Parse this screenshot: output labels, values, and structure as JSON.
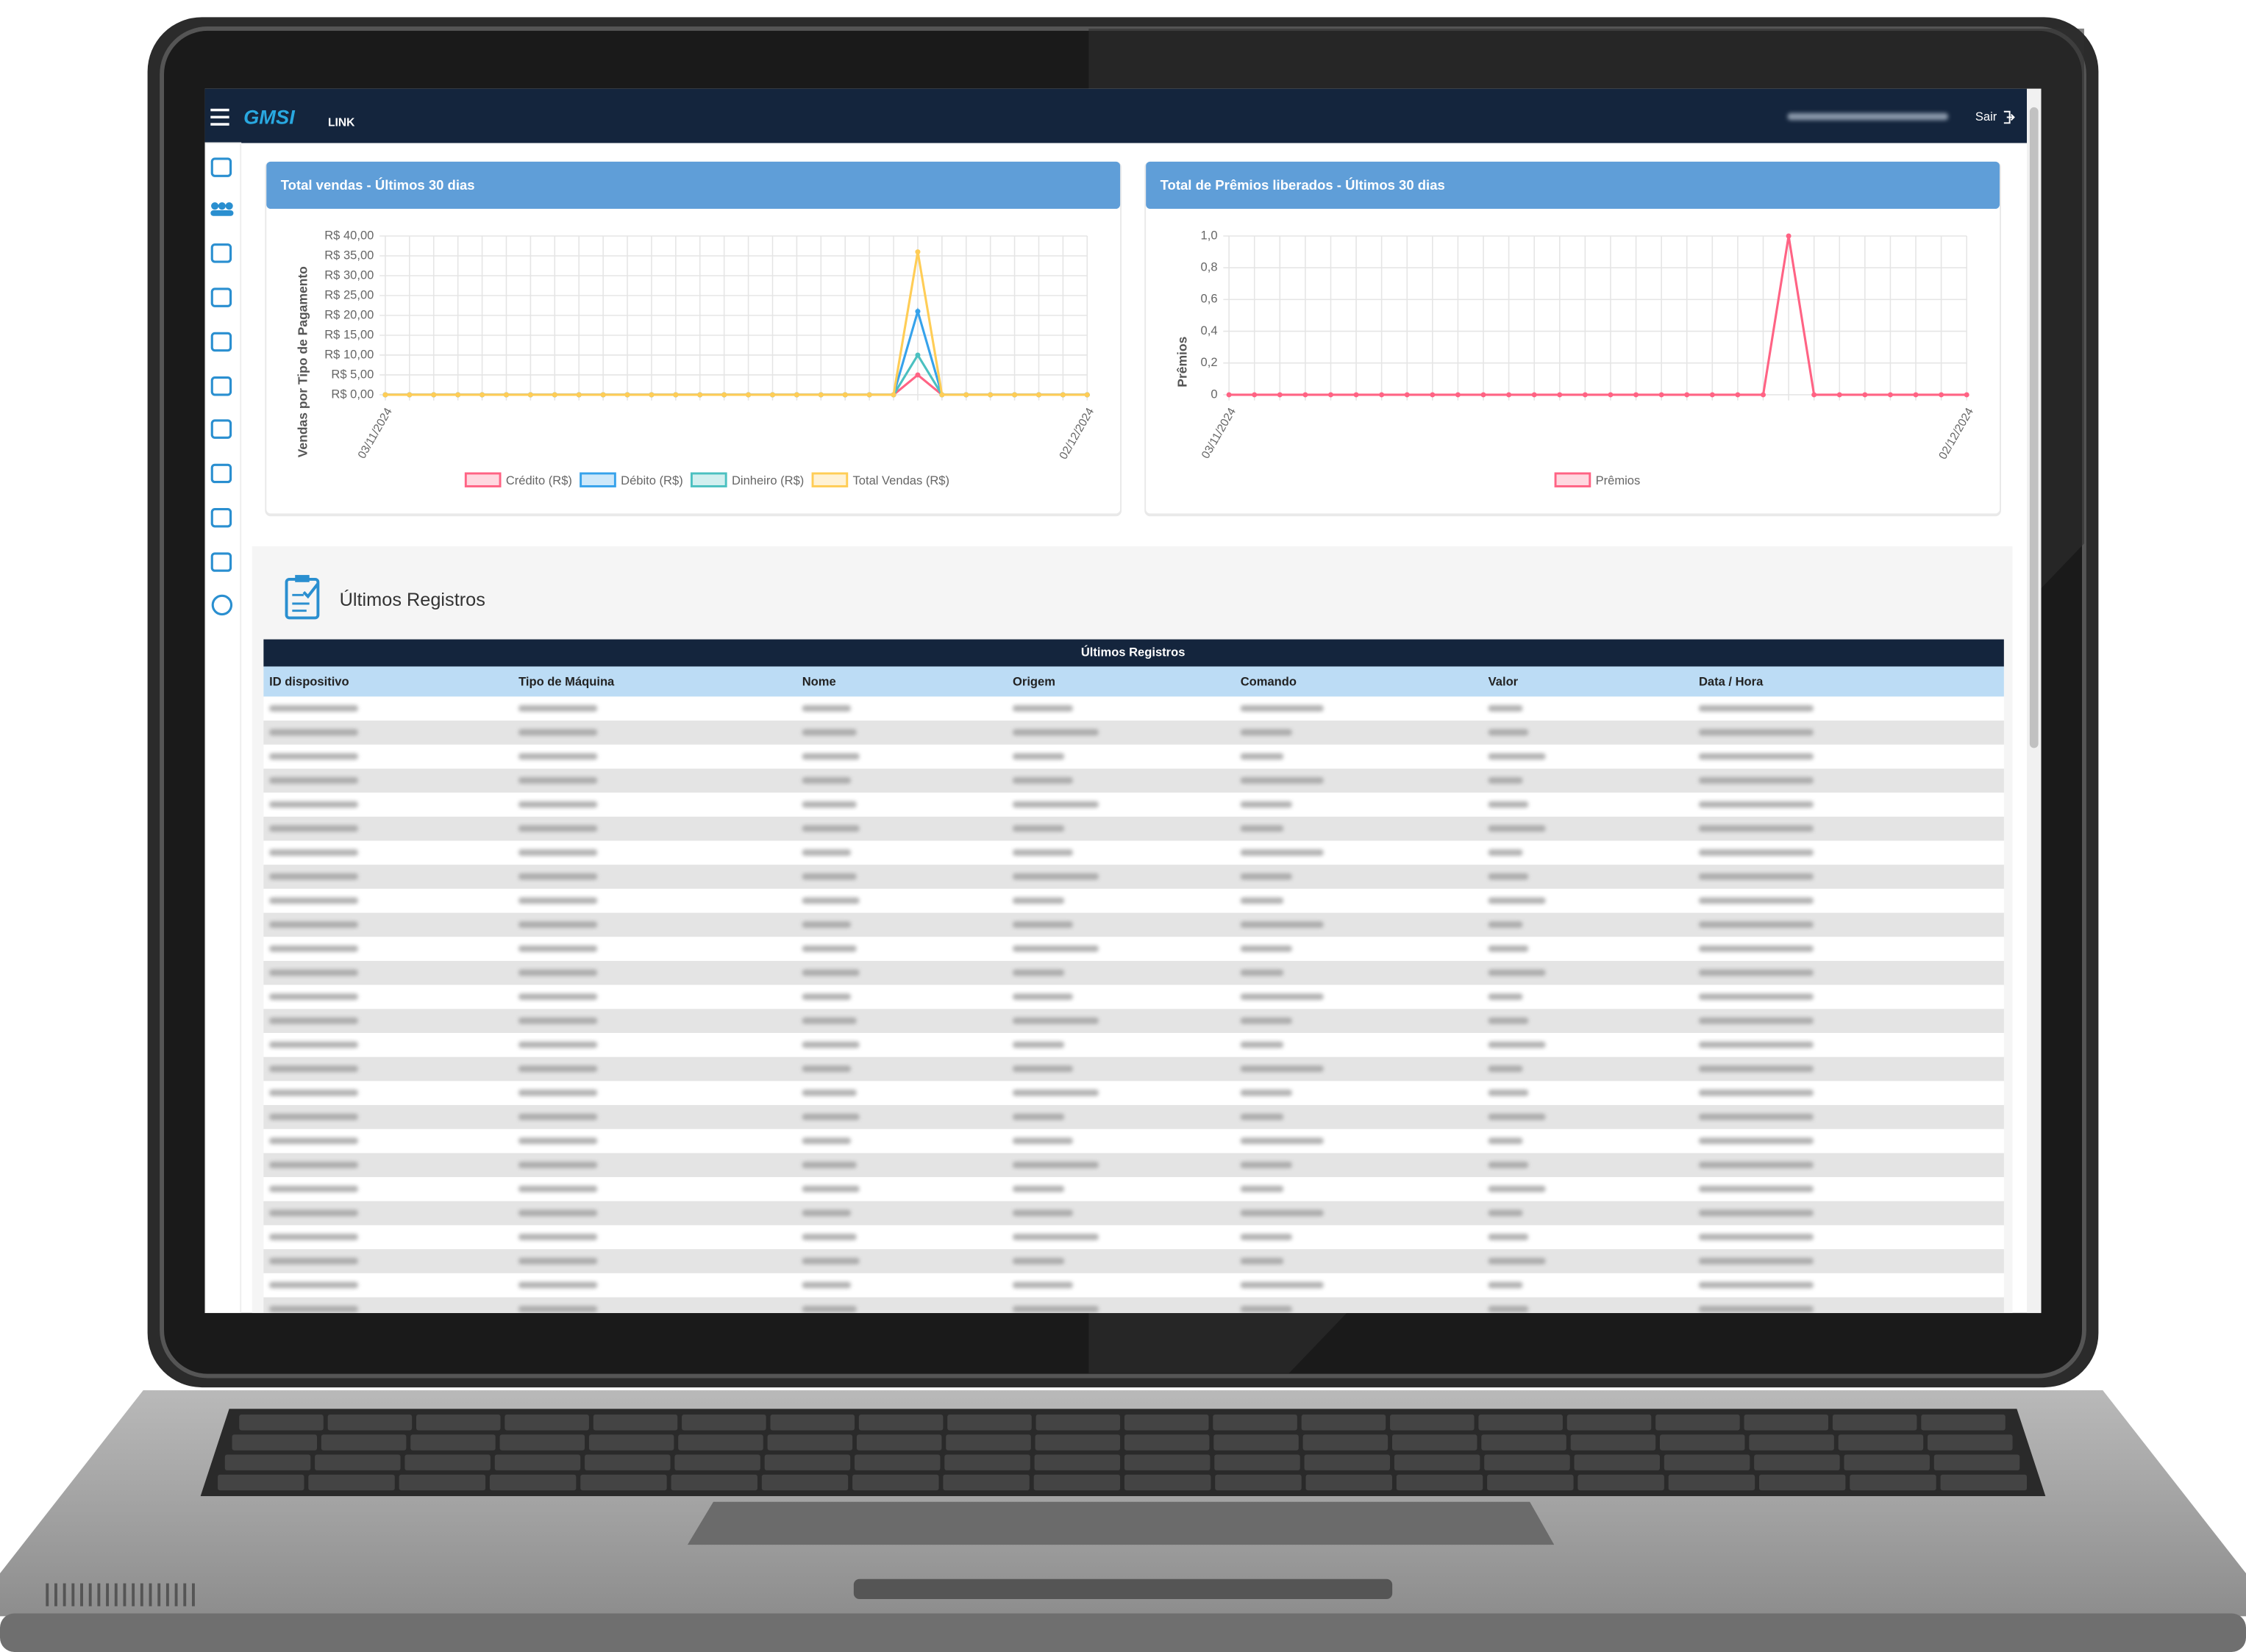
{
  "header": {
    "logo": "GMSI",
    "logo_suffix": "LINK",
    "logout": "Sair"
  },
  "chart_data": [
    {
      "type": "line",
      "title": "Total vendas - Últimos 30 dias",
      "y_label": "Vendas por Tipo de Pagamento",
      "categories": [
        "03/11/2024",
        null,
        null,
        null,
        null,
        null,
        null,
        null,
        null,
        null,
        null,
        null,
        null,
        null,
        null,
        null,
        null,
        null,
        null,
        null,
        null,
        null,
        null,
        null,
        null,
        null,
        null,
        null,
        null,
        "02/12/2024"
      ],
      "series": [
        {
          "name": "Crédito (R$)",
          "color": "#ff6384",
          "values": [
            0,
            0,
            0,
            0,
            0,
            0,
            0,
            0,
            0,
            0,
            0,
            0,
            0,
            0,
            0,
            0,
            0,
            0,
            0,
            0,
            0,
            0,
            5,
            0,
            0,
            0,
            0,
            0,
            0,
            0
          ]
        },
        {
          "name": "Débito (R$)",
          "color": "#36a2eb",
          "values": [
            0,
            0,
            0,
            0,
            0,
            0,
            0,
            0,
            0,
            0,
            0,
            0,
            0,
            0,
            0,
            0,
            0,
            0,
            0,
            0,
            0,
            0,
            21,
            0,
            0,
            0,
            0,
            0,
            0,
            0
          ]
        },
        {
          "name": "Dinheiro (R$)",
          "color": "#4bc0c0",
          "values": [
            0,
            0,
            0,
            0,
            0,
            0,
            0,
            0,
            0,
            0,
            0,
            0,
            0,
            0,
            0,
            0,
            0,
            0,
            0,
            0,
            0,
            0,
            10,
            0,
            0,
            0,
            0,
            0,
            0,
            0
          ]
        },
        {
          "name": "Total Vendas (R$)",
          "color": "#ffcd56",
          "values": [
            0,
            0,
            0,
            0,
            0,
            0,
            0,
            0,
            0,
            0,
            0,
            0,
            0,
            0,
            0,
            0,
            0,
            0,
            0,
            0,
            0,
            0,
            36,
            0,
            0,
            0,
            0,
            0,
            0,
            0
          ]
        }
      ],
      "ylim": [
        0,
        40
      ],
      "yticks": [
        {
          "value": 0,
          "label": "R$ 0,00"
        },
        {
          "value": 5,
          "label": "R$ 5,00"
        },
        {
          "value": 10,
          "label": "R$ 10,00"
        },
        {
          "value": 15,
          "label": "R$ 15,00"
        },
        {
          "value": 20,
          "label": "R$ 20,00"
        },
        {
          "value": 25,
          "label": "R$ 25,00"
        },
        {
          "value": 30,
          "label": "R$ 30,00"
        },
        {
          "value": 35,
          "label": "R$ 35,00"
        },
        {
          "value": 40,
          "label": "R$ 40,00"
        }
      ],
      "grid": true
    },
    {
      "type": "line",
      "title": "Total de Prêmios liberados - Últimos 30 dias",
      "y_label": "Prêmios",
      "categories": [
        "03/11/2024",
        null,
        null,
        null,
        null,
        null,
        null,
        null,
        null,
        null,
        null,
        null,
        null,
        null,
        null,
        null,
        null,
        null,
        null,
        null,
        null,
        null,
        null,
        null,
        null,
        null,
        null,
        null,
        null,
        "02/12/2024"
      ],
      "series": [
        {
          "name": "Prêmios",
          "color": "#ff6384",
          "values": [
            0,
            0,
            0,
            0,
            0,
            0,
            0,
            0,
            0,
            0,
            0,
            0,
            0,
            0,
            0,
            0,
            0,
            0,
            0,
            0,
            0,
            0,
            1,
            0,
            0,
            0,
            0,
            0,
            0,
            0
          ]
        }
      ],
      "ylim": [
        0,
        1
      ],
      "yticks": [
        0,
        {
          "value": 0.2,
          "label": "0,2"
        },
        {
          "value": 0.4,
          "label": "0,4"
        },
        {
          "value": 0.6,
          "label": "0,6"
        },
        {
          "value": 0.8,
          "label": "0,8"
        },
        {
          "value": 1,
          "label": "1,0"
        }
      ],
      "grid": true
    }
  ],
  "records": {
    "title": "Últimos Registros",
    "table": {
      "caption": "Últimos Registros",
      "columns": [
        "ID dispositivo",
        "Tipo de Máquina",
        "Nome",
        "Origem",
        "Comando",
        "Valor",
        "Data / Hora"
      ]
    }
  }
}
